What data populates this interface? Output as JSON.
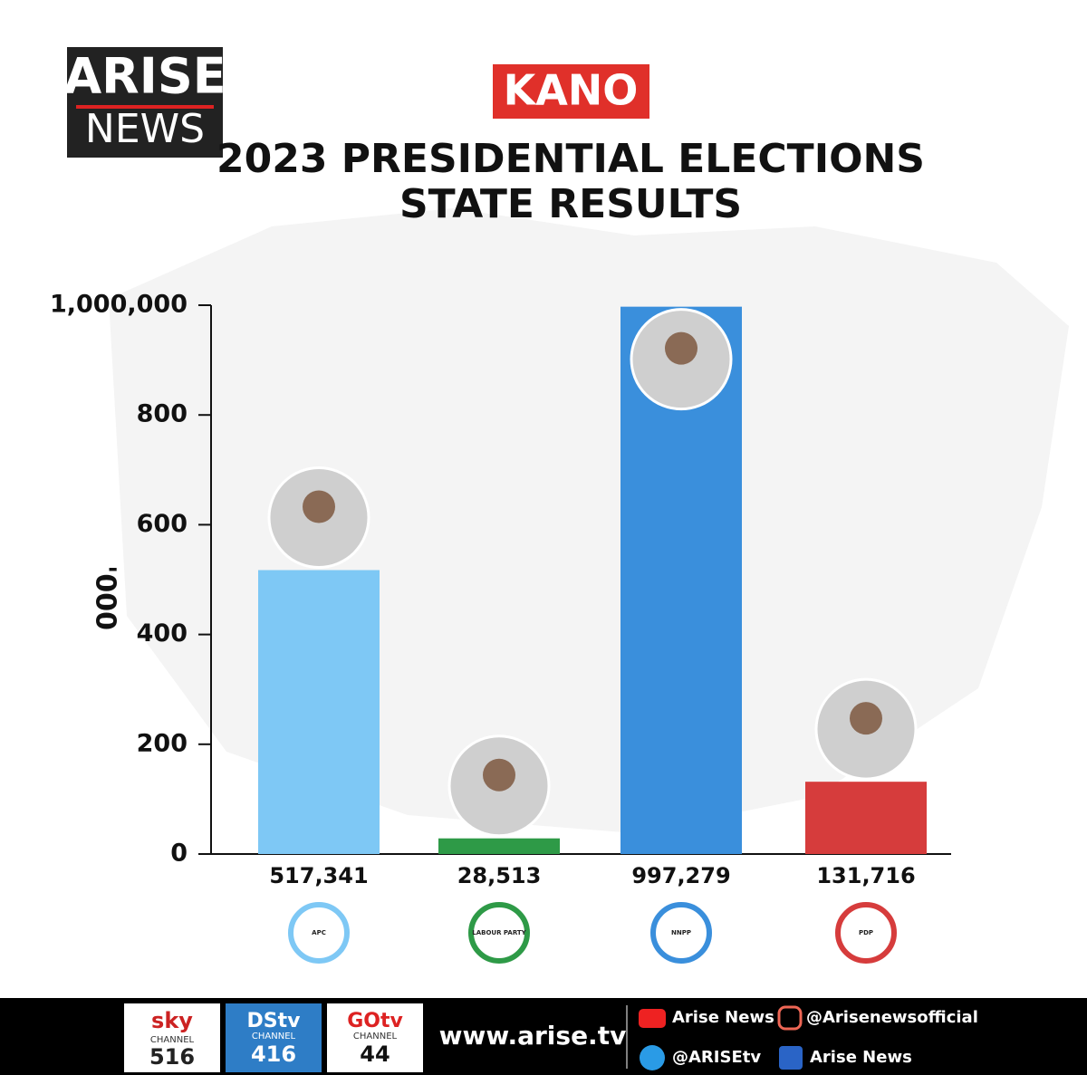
{
  "header": {
    "logo_top": "ARISE",
    "logo_bottom": "NEWS",
    "state": "KANO"
  },
  "chart_data": {
    "type": "bar",
    "title": "2023 PRESIDENTIAL ELECTIONS\nSTATE RESULTS",
    "y_label": "'000",
    "categories": [
      "APC",
      "LABOUR PARTY",
      "NNPP",
      "PDP"
    ],
    "values": [
      517.341,
      28.513,
      997.279,
      131.716
    ],
    "value_labels": [
      "517,341",
      "28,513",
      "997,279",
      "131,716"
    ],
    "colors": [
      "#7ec8f5",
      "#2e9a47",
      "#3a8fdc",
      "#d63c3c"
    ],
    "ylim": [
      0,
      1000
    ],
    "yticks": [
      0,
      200,
      400,
      600,
      800,
      {
        "value": 1000,
        "label": "1,000,000"
      }
    ]
  },
  "footer": {
    "sky": "sky",
    "sky_channel": "CHANNEL",
    "sky_number": "516",
    "dstv": "DStv",
    "dstv_channel": "CHANNEL",
    "dstv_number": "416",
    "gotv": "GOtv",
    "gotv_channel": "CHANNEL",
    "gotv_number": "44",
    "website": "www.arise.tv",
    "youtube": "Arise News",
    "instagram": "@Arisenewsofficial",
    "twitter": "@ARISEtv",
    "facebook": "Arise News"
  }
}
